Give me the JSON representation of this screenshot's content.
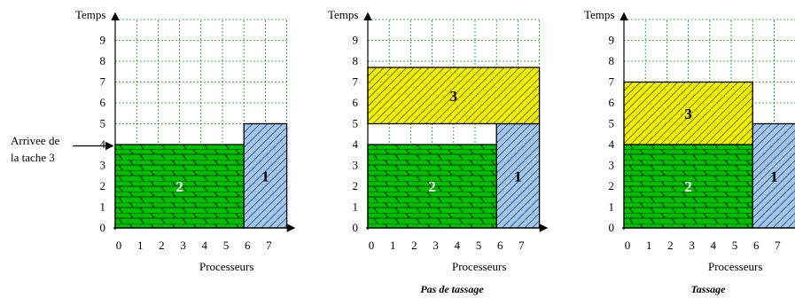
{
  "axis_label_y": "Temps",
  "axis_label_x": "Processeurs",
  "y_ticks": [
    "0",
    "1",
    "2",
    "3",
    "4",
    "5",
    "6",
    "7",
    "8",
    "9"
  ],
  "x_ticks": [
    "0",
    "1",
    "2",
    "3",
    "4",
    "5",
    "6",
    "7"
  ],
  "arrival_annotation": {
    "line1": "Arrivee de",
    "line2": "la tache 3"
  },
  "panels": [
    {
      "caption": "",
      "tasks": [
        {
          "label": "2",
          "proc_start": 0,
          "proc_end": 6,
          "time_start": 0,
          "time_end": 4,
          "fill": "#00c000",
          "pattern": "brick"
        },
        {
          "label": "1",
          "proc_start": 6,
          "proc_end": 8,
          "time_start": 0,
          "time_end": 5,
          "fill": "#9fc6f0",
          "pattern": "hatch"
        }
      ]
    },
    {
      "caption": "Pas de tassage",
      "tasks": [
        {
          "label": "2",
          "proc_start": 0,
          "proc_end": 6,
          "time_start": 0,
          "time_end": 4,
          "fill": "#00c000",
          "pattern": "brick"
        },
        {
          "label": "1",
          "proc_start": 6,
          "proc_end": 8,
          "time_start": 0,
          "time_end": 5,
          "fill": "#9fc6f0",
          "pattern": "hatch"
        },
        {
          "label": "3",
          "proc_start": 0,
          "proc_end": 8,
          "time_start": 5,
          "time_end": 7.7,
          "fill": "#f2f000",
          "pattern": "hatch"
        }
      ]
    },
    {
      "caption": "Tassage",
      "tasks": [
        {
          "label": "2",
          "proc_start": 0,
          "proc_end": 6,
          "time_start": 0,
          "time_end": 4,
          "fill": "#00c000",
          "pattern": "brick"
        },
        {
          "label": "1",
          "proc_start": 6,
          "proc_end": 8,
          "time_start": 0,
          "time_end": 5,
          "fill": "#9fc6f0",
          "pattern": "hatch"
        },
        {
          "label": "3",
          "proc_start": 0,
          "proc_end": 6,
          "time_start": 4,
          "time_end": 7,
          "fill": "#f2f000",
          "pattern": "hatch"
        }
      ]
    }
  ]
}
